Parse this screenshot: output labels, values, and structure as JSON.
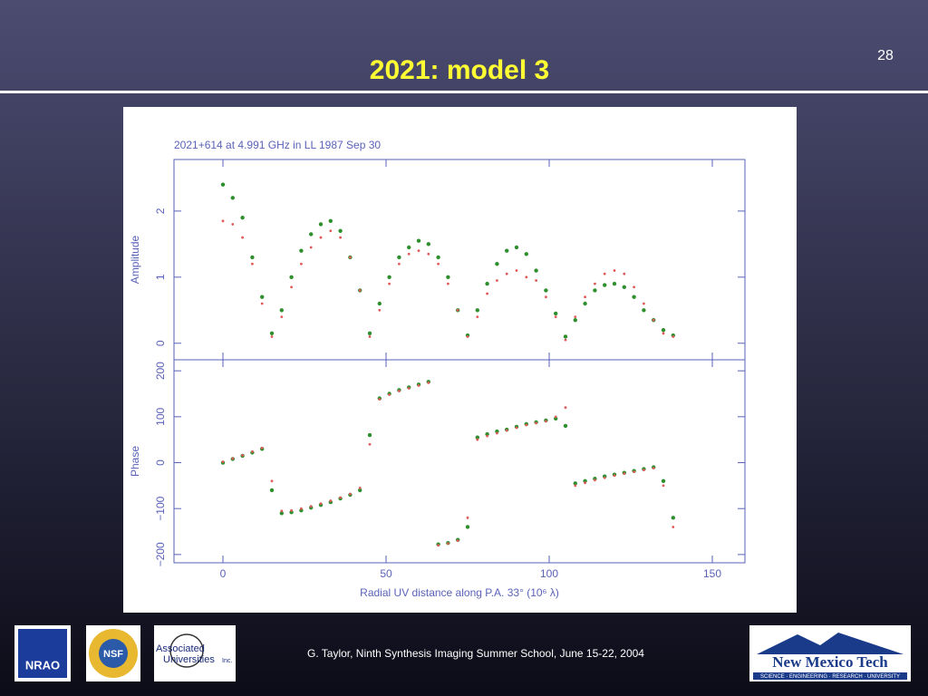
{
  "slide": {
    "title": "2021: model 3",
    "page_number": "28",
    "footer": "G. Taylor, Ninth Synthesis Imaging Summer School, June 15-22, 2004",
    "logos": {
      "nrao": "NRAO",
      "nsf": "NSF",
      "aui_1": "Associated",
      "aui_2": "Universities",
      "aui_3": "Inc.",
      "nmt": "New Mexico Tech",
      "nmt_tagline": "SCIENCE · ENGINEERING · RESEARCH · UNIVERSITY"
    }
  },
  "chart_data": [
    {
      "type": "scatter",
      "title": "2021+614 at 4.991 GHz in LL  1987 Sep 30",
      "ylabel": "Amplitude",
      "x": [
        0,
        3,
        6,
        9,
        12,
        15,
        18,
        21,
        24,
        27,
        30,
        33,
        36,
        39,
        42,
        45,
        48,
        51,
        54,
        57,
        60,
        63,
        66,
        69,
        72,
        75,
        78,
        81,
        84,
        87,
        90,
        93,
        96,
        99,
        102,
        105,
        108,
        111,
        114,
        117,
        120,
        123,
        126,
        129,
        132,
        135,
        138
      ],
      "xlim": [
        -15,
        160
      ],
      "ylim": [
        -0.25,
        2.78
      ],
      "xticks": [
        0,
        50,
        100,
        150
      ],
      "yticks": [
        0,
        1,
        2
      ],
      "series": [
        {
          "color": "#2f8f2f",
          "values": [
            2.4,
            2.2,
            1.9,
            1.3,
            0.7,
            0.15,
            0.5,
            1.0,
            1.4,
            1.65,
            1.8,
            1.85,
            1.7,
            1.3,
            0.8,
            0.15,
            0.6,
            1.0,
            1.3,
            1.45,
            1.55,
            1.5,
            1.3,
            1.0,
            0.5,
            0.12,
            0.5,
            0.9,
            1.2,
            1.4,
            1.45,
            1.35,
            1.1,
            0.8,
            0.45,
            0.1,
            0.35,
            0.6,
            0.8,
            0.88,
            0.9,
            0.85,
            0.7,
            0.5,
            0.35,
            0.2,
            0.12
          ]
        },
        {
          "color": "#e05a5a",
          "values": [
            1.85,
            1.8,
            1.6,
            1.2,
            0.6,
            0.1,
            0.4,
            0.85,
            1.2,
            1.45,
            1.6,
            1.7,
            1.6,
            1.3,
            0.8,
            0.1,
            0.5,
            0.9,
            1.2,
            1.35,
            1.4,
            1.35,
            1.2,
            0.9,
            0.5,
            0.1,
            0.4,
            0.75,
            0.95,
            1.05,
            1.1,
            1.0,
            0.95,
            0.7,
            0.4,
            0.05,
            0.4,
            0.7,
            0.9,
            1.05,
            1.1,
            1.05,
            0.85,
            0.6,
            0.35,
            0.15,
            0.1
          ]
        }
      ]
    },
    {
      "type": "scatter",
      "ylabel": "Phase",
      "xlabel": "Radial UV distance along P.A. 33° (10⁶ λ)",
      "x": [
        0,
        3,
        6,
        9,
        12,
        15,
        18,
        21,
        24,
        27,
        30,
        33,
        36,
        39,
        42,
        45,
        48,
        51,
        54,
        57,
        60,
        63,
        66,
        69,
        72,
        75,
        78,
        81,
        84,
        87,
        90,
        93,
        96,
        99,
        102,
        105,
        108,
        111,
        114,
        117,
        120,
        123,
        126,
        129,
        132,
        135,
        138
      ],
      "xlim": [
        -15,
        160
      ],
      "ylim": [
        -218,
        224
      ],
      "xticks": [
        0,
        50,
        100,
        150
      ],
      "yticks": [
        {
          "value": -200,
          "label": "−200"
        },
        {
          "value": -100,
          "label": "−100"
        },
        0,
        100,
        200
      ],
      "series": [
        {
          "color": "#2f8f2f",
          "values": [
            0,
            8,
            15,
            22,
            30,
            -60,
            -110,
            -108,
            -104,
            -98,
            -92,
            -86,
            -78,
            -70,
            -60,
            60,
            140,
            150,
            158,
            164,
            170,
            176,
            -178,
            -175,
            -168,
            -140,
            55,
            62,
            68,
            72,
            78,
            84,
            88,
            92,
            96,
            80,
            -45,
            -40,
            -35,
            -30,
            -26,
            -22,
            -18,
            -14,
            -10,
            -40,
            -120
          ]
        },
        {
          "color": "#e05a5a",
          "values": [
            2,
            9,
            16,
            24,
            32,
            -40,
            -105,
            -104,
            -100,
            -95,
            -89,
            -83,
            -76,
            -68,
            -55,
            40,
            138,
            148,
            156,
            162,
            168,
            174,
            -180,
            -176,
            -170,
            -120,
            50,
            58,
            64,
            70,
            76,
            82,
            86,
            90,
            100,
            120,
            -50,
            -44,
            -38,
            -33,
            -28,
            -24,
            -20,
            -16,
            -12,
            -50,
            -140
          ]
        }
      ]
    }
  ]
}
